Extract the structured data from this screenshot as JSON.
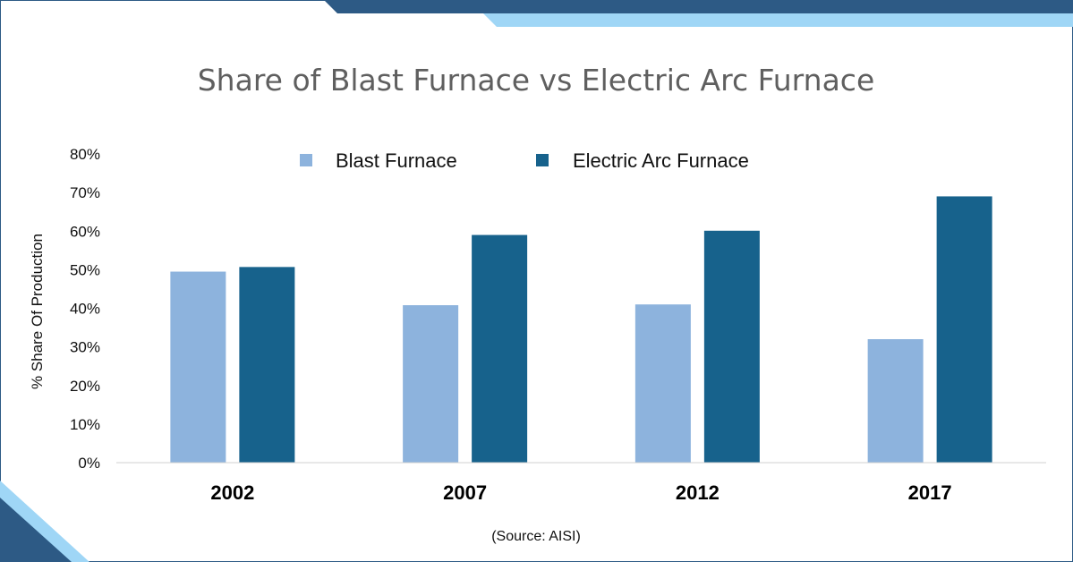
{
  "chart_data": {
    "type": "bar",
    "title": "Share of Blast Furnace vs Electric Arc Furnace",
    "xlabel": "",
    "ylabel": "% Share Of Production",
    "categories": [
      "2002",
      "2007",
      "2012",
      "2017"
    ],
    "series": [
      {
        "name": "Blast Furnace",
        "color": "#8db3dd",
        "values": [
          49.5,
          40.8,
          41,
          32
        ]
      },
      {
        "name": "Electric Arc Furnace",
        "color": "#17628c",
        "values": [
          50.7,
          59,
          60.1,
          69
        ]
      }
    ],
    "ylim": [
      0,
      80
    ],
    "yticks": [
      "0%",
      "10%",
      "20%",
      "30%",
      "40%",
      "50%",
      "60%",
      "70%",
      "80%"
    ],
    "grid": false,
    "legend": "top-center",
    "source": "(Source: AISI)"
  },
  "decor": {
    "dark": "#2d5a85",
    "light": "#9fd6f6",
    "border": "#2d5a85"
  }
}
